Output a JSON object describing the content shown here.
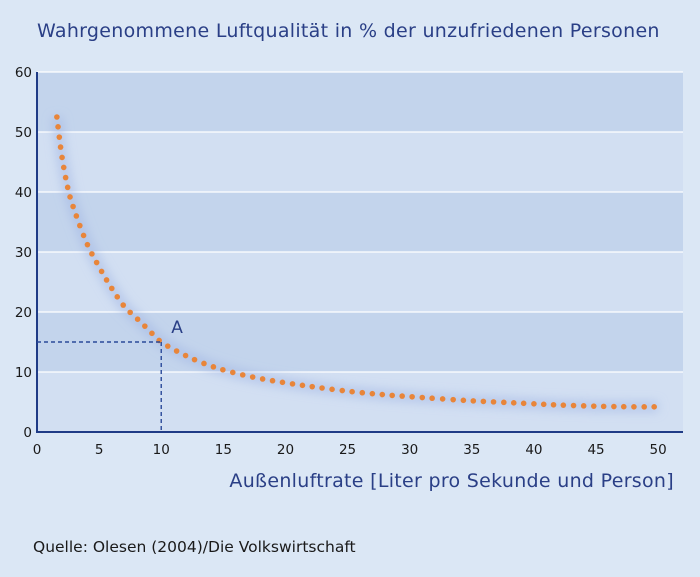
{
  "chart_data": {
    "type": "scatter",
    "title": "Wahrgenommene Luftqualität in % der unzufriedenen Personen",
    "xlabel": "Außenluftrate [Liter pro Sekunde und Person]",
    "ylabel": "",
    "xlim": [
      0,
      52
    ],
    "ylim": [
      0,
      60
    ],
    "x_ticks": [
      0,
      5,
      10,
      15,
      20,
      25,
      30,
      35,
      40,
      45,
      50
    ],
    "y_ticks": [
      0,
      10,
      20,
      30,
      40,
      50,
      60
    ],
    "grid": true,
    "series": [
      {
        "style": "dotted-curve",
        "color": "#e8853a",
        "points": [
          [
            1.6,
            52.5
          ],
          [
            2.0,
            46.0
          ],
          [
            2.5,
            40.5
          ],
          [
            3.0,
            37.0
          ],
          [
            4.0,
            31.5
          ],
          [
            5.0,
            27.5
          ],
          [
            6.0,
            24.0
          ],
          [
            7.0,
            21.0
          ],
          [
            8.0,
            19.0
          ],
          [
            9.0,
            17.0
          ],
          [
            10.0,
            15.0
          ],
          [
            12.0,
            12.7
          ],
          [
            14.0,
            11.0
          ],
          [
            16.0,
            9.8
          ],
          [
            18.0,
            8.9
          ],
          [
            20.0,
            8.2
          ],
          [
            22.0,
            7.6
          ],
          [
            25.0,
            6.8
          ],
          [
            28.0,
            6.2
          ],
          [
            30.0,
            5.9
          ],
          [
            32.0,
            5.6
          ],
          [
            35.0,
            5.2
          ],
          [
            38.0,
            4.9
          ],
          [
            40.0,
            4.7
          ],
          [
            42.0,
            4.5
          ],
          [
            45.0,
            4.3
          ],
          [
            48.0,
            4.2
          ],
          [
            50.0,
            4.2
          ]
        ]
      }
    ],
    "annotations": [
      {
        "label": "A",
        "x": 10,
        "y": 15,
        "guides": true
      }
    ]
  },
  "source": "Quelle: Olesen (2004)/Die Volkswirtschaft",
  "colors": {
    "page_bg": "#dbe7f5",
    "plot_band_dark": "#c3d4ec",
    "plot_band_light": "#d2dff2",
    "title_text": "#2a3f86",
    "axis": "#1f3b86",
    "grid": "#ffffff",
    "curve": "#e8853a",
    "guide": "#2a4a9a"
  }
}
